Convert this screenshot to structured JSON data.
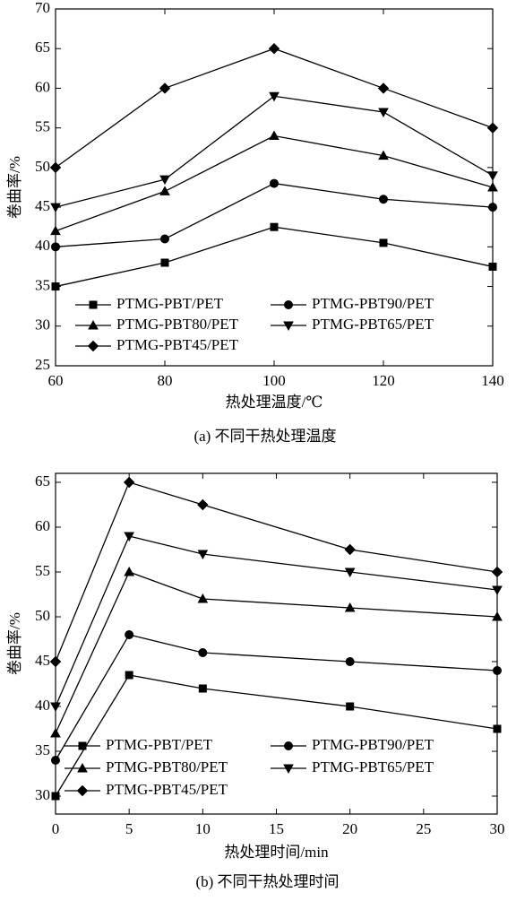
{
  "chart_data": [
    {
      "type": "line",
      "xlabel": "热处理温度/℃",
      "ylabel": "卷曲率/%",
      "caption": "(a) 不同干热处理温度",
      "x": [
        60,
        80,
        100,
        120,
        140
      ],
      "xlim": [
        60,
        140
      ],
      "xticks": [
        60,
        80,
        100,
        120,
        140
      ],
      "ylim": [
        25,
        70
      ],
      "yticks": [
        25,
        30,
        35,
        40,
        45,
        50,
        55,
        60,
        65,
        70
      ],
      "series": [
        {
          "name": "PTMG-PBT/PET",
          "color": "#000000",
          "marker": "square",
          "values": [
            35,
            38,
            42.5,
            40.5,
            37.5
          ]
        },
        {
          "name": "PTMG-PBT90/PET",
          "color": "#000000",
          "marker": "circle",
          "values": [
            40,
            41,
            48,
            46,
            45
          ]
        },
        {
          "name": "PTMG-PBT80/PET",
          "color": "#000000",
          "marker": "triangle-up",
          "values": [
            42,
            47,
            54,
            51.5,
            47.5
          ]
        },
        {
          "name": "PTMG-PBT65/PET",
          "color": "#000000",
          "marker": "triangle-down",
          "values": [
            45,
            48.5,
            59,
            57,
            49
          ]
        },
        {
          "name": "PTMG-PBT45/PET",
          "color": "#000000",
          "marker": "diamond",
          "values": [
            50,
            60,
            65,
            60,
            55
          ]
        }
      ]
    },
    {
      "type": "line",
      "xlabel": "热处理时间/min",
      "ylabel": "卷曲率/%",
      "caption": "(b) 不同干热处理时间",
      "x": [
        0,
        5,
        10,
        20,
        30
      ],
      "xlim": [
        0,
        30
      ],
      "xticks": [
        0,
        5,
        10,
        15,
        20,
        25,
        30
      ],
      "ylim": [
        28,
        66
      ],
      "yticks": [
        30,
        35,
        40,
        45,
        50,
        55,
        60,
        65
      ],
      "series": [
        {
          "name": "PTMG-PBT/PET",
          "color": "#000000",
          "marker": "square",
          "values": [
            30,
            43.5,
            42,
            40,
            37.5
          ]
        },
        {
          "name": "PTMG-PBT90/PET",
          "color": "#000000",
          "marker": "circle",
          "values": [
            34,
            48,
            46,
            45,
            44
          ]
        },
        {
          "name": "PTMG-PBT80/PET",
          "color": "#000000",
          "marker": "triangle-up",
          "values": [
            37,
            55,
            52,
            51,
            50
          ]
        },
        {
          "name": "PTMG-PBT65/PET",
          "color": "#000000",
          "marker": "triangle-down",
          "values": [
            40,
            59,
            57,
            55,
            53
          ]
        },
        {
          "name": "PTMG-PBT45/PET",
          "color": "#000000",
          "marker": "diamond",
          "values": [
            45,
            65,
            62.5,
            57.5,
            55
          ]
        }
      ]
    }
  ]
}
